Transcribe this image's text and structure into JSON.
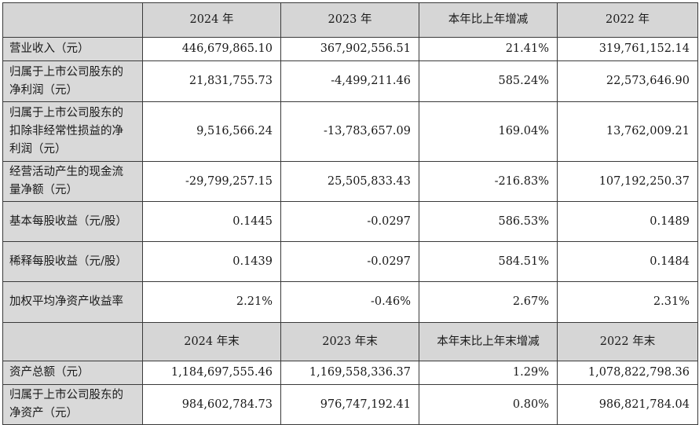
{
  "header1": [
    "",
    "2024 年",
    "2023 年",
    "本年比上年增减",
    "2022 年"
  ],
  "rows1": [
    {
      "label": "营业收入（元）",
      "values": [
        "446,679,865.10",
        "367,902,556.51",
        "21.41%",
        "319,761,152.14"
      ]
    },
    {
      "label": "归属于上市公司股东的净利润（元）",
      "values": [
        "21,831,755.73",
        "-4,499,211.46",
        "585.24%",
        "22,573,646.90"
      ]
    },
    {
      "label": "归属于上市公司股东的扣除非经常性损益的净利润（元）",
      "values": [
        "9,516,566.24",
        "-13,783,657.09",
        "169.04%",
        "13,762,009.21"
      ]
    },
    {
      "label": "经营活动产生的现金流量净额（元）",
      "values": [
        "-29,799,257.15",
        "25,505,833.43",
        "-216.83%",
        "107,192,250.37"
      ]
    },
    {
      "label": "基本每股收益（元/股）",
      "values": [
        "0.1445",
        "-0.0297",
        "586.53%",
        "0.1489"
      ]
    },
    {
      "label": "稀释每股收益（元/股）",
      "values": [
        "0.1439",
        "-0.0297",
        "584.51%",
        "0.1484"
      ]
    },
    {
      "label": "加权平均净资产收益率",
      "values": [
        "2.21%",
        "-0.46%",
        "2.67%",
        "2.31%"
      ]
    }
  ],
  "header2": [
    "",
    "2024 年末",
    "2023 年末",
    "本年末比上年末增减",
    "2022 年末"
  ],
  "rows2": [
    {
      "label": "资产总额（元）",
      "values": [
        "1,184,697,555.46",
        "1,169,558,336.37",
        "1.29%",
        "1,078,822,798.36"
      ]
    },
    {
      "label": "归属于上市公司股东的净资产（元）",
      "values": [
        "984,602,784.73",
        "976,747,192.41",
        "0.80%",
        "986,821,784.04"
      ]
    }
  ]
}
